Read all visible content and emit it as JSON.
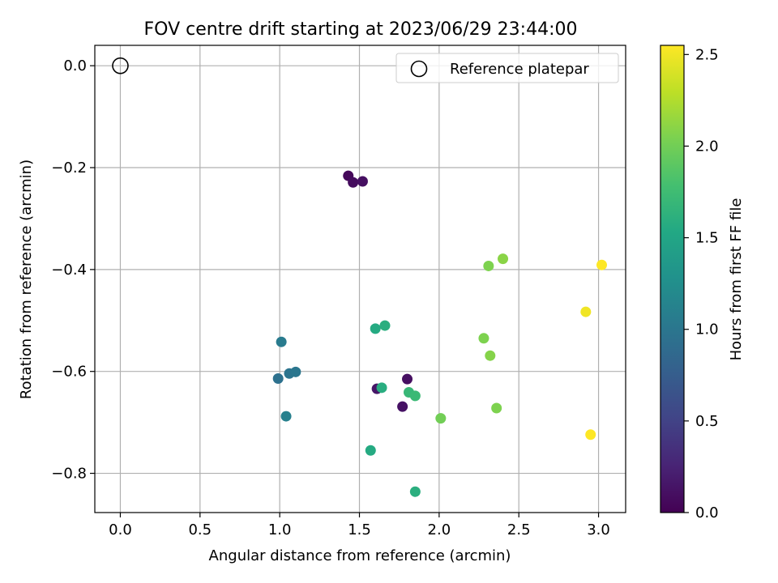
{
  "chart_data": {
    "type": "scatter",
    "title": "FOV centre drift starting at 2023/06/29 23:44:00",
    "xlabel": "Angular distance from reference (arcmin)",
    "ylabel": "Rotation from reference (arcmin)",
    "xlim": [
      -0.16,
      3.17
    ],
    "ylim": [
      -0.877,
      0.04
    ],
    "xticks": [
      0.0,
      0.5,
      1.0,
      1.5,
      2.0,
      2.5,
      3.0
    ],
    "xtick_labels": [
      "0.0",
      "0.5",
      "1.0",
      "1.5",
      "2.0",
      "2.5",
      "3.0"
    ],
    "yticks": [
      0.0,
      -0.2,
      -0.4,
      -0.6,
      -0.8
    ],
    "ytick_labels": [
      "0.0",
      "−0.2",
      "−0.4",
      "−0.6",
      "−0.8"
    ],
    "grid": true,
    "legend": {
      "placement": "top-right",
      "entries": [
        "Reference platepar"
      ]
    },
    "reference": {
      "x": 0.0,
      "y": 0.0
    },
    "colorbar": {
      "label": "Hours from first FF file",
      "colormap": "viridis",
      "range": [
        0.0,
        2.55
      ],
      "ticks": [
        0.0,
        0.5,
        1.0,
        1.5,
        2.0,
        2.5
      ],
      "tick_labels": [
        "0.0",
        "0.5",
        "1.0",
        "1.5",
        "2.0",
        "2.5"
      ]
    },
    "points": [
      {
        "x": 1.43,
        "y": -0.216,
        "hours": 0.05
      },
      {
        "x": 1.46,
        "y": -0.229,
        "hours": 0.08
      },
      {
        "x": 1.52,
        "y": -0.227,
        "hours": 0.1
      },
      {
        "x": 1.61,
        "y": -0.634,
        "hours": 0.15
      },
      {
        "x": 1.8,
        "y": -0.615,
        "hours": 0.1
      },
      {
        "x": 1.77,
        "y": -0.669,
        "hours": 0.12
      },
      {
        "x": 1.01,
        "y": -0.542,
        "hours": 1.05
      },
      {
        "x": 0.99,
        "y": -0.614,
        "hours": 0.95
      },
      {
        "x": 1.06,
        "y": -0.604,
        "hours": 0.98
      },
      {
        "x": 1.1,
        "y": -0.601,
        "hours": 1.0
      },
      {
        "x": 1.04,
        "y": -0.688,
        "hours": 1.1
      },
      {
        "x": 1.6,
        "y": -0.516,
        "hours": 1.55
      },
      {
        "x": 1.66,
        "y": -0.51,
        "hours": 1.6
      },
      {
        "x": 1.64,
        "y": -0.632,
        "hours": 1.58
      },
      {
        "x": 1.81,
        "y": -0.641,
        "hours": 1.7
      },
      {
        "x": 1.85,
        "y": -0.648,
        "hours": 1.72
      },
      {
        "x": 1.57,
        "y": -0.755,
        "hours": 1.55
      },
      {
        "x": 1.85,
        "y": -0.836,
        "hours": 1.6
      },
      {
        "x": 2.01,
        "y": -0.692,
        "hours": 2.0
      },
      {
        "x": 2.31,
        "y": -0.393,
        "hours": 2.05
      },
      {
        "x": 2.4,
        "y": -0.379,
        "hours": 2.1
      },
      {
        "x": 2.28,
        "y": -0.535,
        "hours": 2.05
      },
      {
        "x": 2.32,
        "y": -0.569,
        "hours": 2.08
      },
      {
        "x": 2.36,
        "y": -0.672,
        "hours": 2.05
      },
      {
        "x": 2.92,
        "y": -0.483,
        "hours": 2.5
      },
      {
        "x": 3.02,
        "y": -0.391,
        "hours": 2.55
      },
      {
        "x": 2.95,
        "y": -0.724,
        "hours": 2.55
      }
    ]
  }
}
